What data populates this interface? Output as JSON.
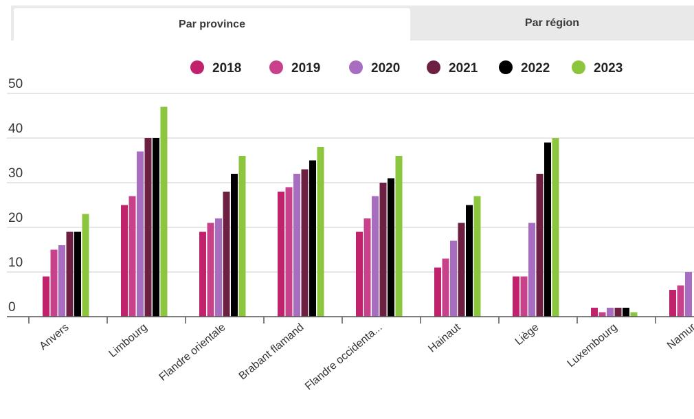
{
  "tabs": [
    {
      "label": "Par province",
      "active": true
    },
    {
      "label": "Par région",
      "active": false
    }
  ],
  "chart_data": {
    "type": "bar",
    "categories": [
      "Anvers",
      "Limbourg",
      "Flandre orientale",
      "Brabant flamand",
      "Flandre occidenta...",
      "Hainaut",
      "Liège",
      "Luxembourg",
      "Namur"
    ],
    "series": [
      {
        "name": "2018",
        "color": "#c0226b",
        "values": [
          9,
          25,
          19,
          28,
          19,
          11,
          9,
          2,
          6
        ]
      },
      {
        "name": "2019",
        "color": "#c8418b",
        "values": [
          15,
          27,
          21,
          29,
          22,
          13,
          9,
          1,
          7
        ]
      },
      {
        "name": "2020",
        "color": "#a86cc1",
        "values": [
          16,
          37,
          22,
          32,
          27,
          17,
          21,
          2,
          10
        ]
      },
      {
        "name": "2021",
        "color": "#6e2043",
        "values": [
          19,
          40,
          28,
          33,
          30,
          21,
          32,
          2,
          null
        ]
      },
      {
        "name": "2022",
        "color": "#000000",
        "values": [
          19,
          40,
          32,
          35,
          31,
          25,
          39,
          2,
          null
        ]
      },
      {
        "name": "2023",
        "color": "#8cc63f",
        "values": [
          23,
          47,
          36,
          38,
          36,
          27,
          40,
          1,
          null
        ]
      }
    ],
    "yticks": [
      "0",
      "10",
      "20",
      "30",
      "40",
      "50"
    ],
    "ylim": [
      0,
      50
    ],
    "grid": true,
    "legend": "top"
  }
}
